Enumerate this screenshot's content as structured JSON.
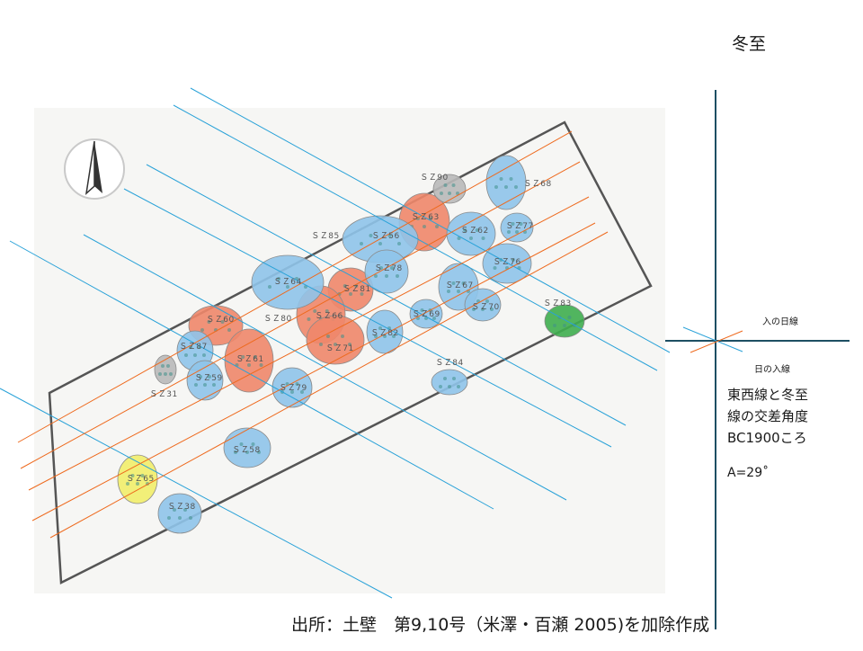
{
  "title": "冬至",
  "compass": {
    "icon": "north-arrow-icon"
  },
  "pits": {
    "red": [
      "ＳＺ63",
      "ＳＺ81",
      "ＳＺ60",
      "ＳＺ66",
      "ＳＺ61",
      "ＳＺ71"
    ],
    "blue": [
      "ＳＺ68",
      "ＳＺ62",
      "ＳＺ77",
      "ＳＺ56",
      "ＳＺ76",
      "ＳＺ78",
      "ＳＺ64",
      "ＳＺ67",
      "ＳＺ70",
      "ＳＺ69",
      "ＳＺ82",
      "ＳＺ87",
      "ＳＺ59",
      "ＳＺ79",
      "ＳＺ58",
      "ＳＺ38",
      "ＳＺ84"
    ],
    "gray": [
      "ＳＺ90",
      "ＳＺ31"
    ],
    "green": [
      "ＳＺ83"
    ],
    "yellow": [
      "ＳＺ65"
    ],
    "other": [
      "ＳＺ85",
      "ＳＺ80"
    ]
  },
  "legend": {
    "sunset_direction_label": "入の日線",
    "sunset_line_label": "日の入線"
  },
  "note": {
    "line1": "東西線と冬至",
    "line2": "線の交差角度",
    "line3": "BC1900ころ",
    "angle": "A=29˚"
  },
  "source": "出所：土壁　第9,10号（米澤・百瀬 2005)を加除作成",
  "colors": {
    "red_pit": "#f0876a",
    "blue_pit": "#8fc4ea",
    "gray_pit": "#b9b9b9",
    "green_pit": "#3fae4f",
    "yellow_pit": "#f2ee6a",
    "blue_line": "#2aa2d8",
    "orange_line": "#ee6a1e",
    "frame": "#555555",
    "axis": "#1d4f63"
  }
}
